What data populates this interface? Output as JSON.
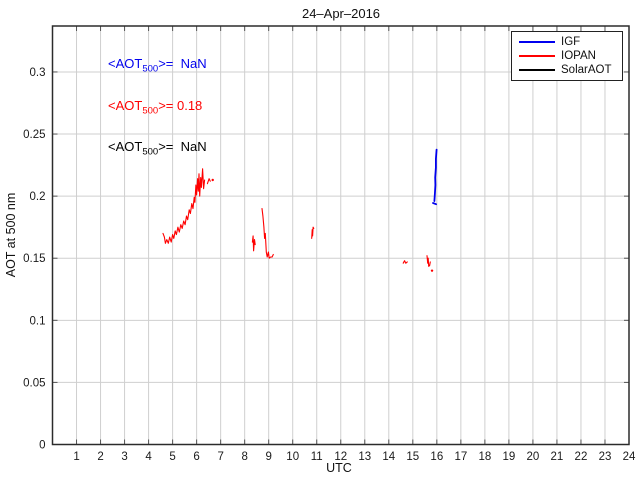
{
  "chart_data": {
    "type": "line",
    "title": "24–Apr–2016",
    "xlabel": "UTC",
    "ylabel": "AOT at 500 nm",
    "xlim": [
      0,
      24
    ],
    "ylim": [
      0,
      0.337
    ],
    "x_ticks": [
      1,
      2,
      3,
      4,
      5,
      6,
      7,
      8,
      9,
      10,
      11,
      12,
      13,
      14,
      15,
      16,
      17,
      18,
      19,
      20,
      21,
      22,
      23,
      24
    ],
    "y_ticks": [
      {
        "value": 0,
        "label": "0"
      },
      {
        "value": 0.05,
        "label": "0.05"
      },
      {
        "value": 0.1,
        "label": "0.1"
      },
      {
        "value": 0.15,
        "label": "0.15"
      },
      {
        "value": 0.2,
        "label": "0.2"
      },
      {
        "value": 0.25,
        "label": "0.25"
      },
      {
        "value": 0.3,
        "label": "0.3"
      }
    ],
    "grid": true,
    "legend_position": "top-right",
    "colors": {
      "grid": "#cfcfcf",
      "axis": "#2b2b2b",
      "tick": "#555555"
    },
    "series": [
      {
        "name": "IGF",
        "color": "#0000ee",
        "width": 1.8,
        "segments": [
          [
            [
              15.84,
              0.1945
            ],
            [
              15.97,
              0.1935
            ]
          ],
          [
            [
              15.9,
              0.196
            ],
            [
              15.92,
              0.202
            ],
            [
              15.94,
              0.209
            ],
            [
              15.93,
              0.215
            ],
            [
              15.96,
              0.223
            ],
            [
              15.96,
              0.23
            ],
            [
              15.99,
              0.2375
            ]
          ]
        ]
      },
      {
        "name": "IOPAN",
        "color": "#ff0000",
        "width": 1.1,
        "segments": [
          [
            [
              4.6,
              0.17
            ],
            [
              4.66,
              0.167
            ],
            [
              4.7,
              0.162
            ],
            [
              4.76,
              0.165
            ],
            [
              4.82,
              0.162
            ],
            [
              4.88,
              0.167
            ],
            [
              4.94,
              0.163
            ],
            [
              5.0,
              0.169
            ],
            [
              5.05,
              0.166
            ],
            [
              5.11,
              0.172
            ],
            [
              5.16,
              0.169
            ],
            [
              5.22,
              0.175
            ],
            [
              5.28,
              0.171
            ],
            [
              5.34,
              0.177
            ],
            [
              5.4,
              0.174
            ],
            [
              5.46,
              0.18
            ],
            [
              5.52,
              0.177
            ],
            [
              5.58,
              0.184
            ],
            [
              5.63,
              0.181
            ],
            [
              5.69,
              0.189
            ],
            [
              5.74,
              0.186
            ],
            [
              5.8,
              0.194
            ],
            [
              5.85,
              0.19
            ],
            [
              5.9,
              0.199
            ],
            [
              5.93,
              0.195
            ],
            [
              5.97,
              0.209
            ],
            [
              6.0,
              0.201
            ],
            [
              6.04,
              0.214
            ],
            [
              6.07,
              0.204
            ],
            [
              6.1,
              0.218
            ],
            [
              6.13,
              0.2
            ],
            [
              6.17,
              0.215
            ],
            [
              6.2,
              0.207
            ],
            [
              6.25,
              0.222
            ],
            [
              6.29,
              0.206
            ],
            [
              6.33,
              0.213
            ]
          ],
          [
            [
              6.45,
              0.21
            ],
            [
              6.52,
              0.214
            ],
            [
              6.57,
              0.212
            ]
          ],
          [
            [
              6.67,
              0.213
            ]
          ],
          [
            [
              8.32,
              0.163
            ],
            [
              8.35,
              0.168
            ],
            [
              8.37,
              0.156
            ],
            [
              8.41,
              0.165
            ],
            [
              8.44,
              0.161
            ]
          ],
          [
            [
              8.72,
              0.19
            ],
            [
              8.76,
              0.184
            ],
            [
              8.8,
              0.175
            ],
            [
              8.83,
              0.166
            ],
            [
              8.86,
              0.17
            ],
            [
              8.9,
              0.155
            ],
            [
              8.94,
              0.151
            ],
            [
              8.99,
              0.155
            ],
            [
              9.02,
              0.15
            ],
            [
              9.08,
              0.151
            ],
            [
              9.14,
              0.151
            ],
            [
              9.19,
              0.153
            ]
          ],
          [
            [
              10.79,
              0.166
            ],
            [
              10.81,
              0.173
            ],
            [
              10.83,
              0.168
            ],
            [
              10.85,
              0.175
            ],
            [
              10.88,
              0.174
            ]
          ],
          [
            [
              14.6,
              0.146
            ],
            [
              14.66,
              0.148
            ],
            [
              14.71,
              0.146
            ],
            [
              14.77,
              0.147
            ]
          ],
          [
            [
              15.59,
              0.152
            ],
            [
              15.62,
              0.146
            ],
            [
              15.64,
              0.15
            ],
            [
              15.66,
              0.1435
            ],
            [
              15.7,
              0.144
            ],
            [
              15.73,
              0.147
            ]
          ],
          [
            [
              15.8,
              0.14
            ]
          ]
        ]
      },
      {
        "name": "SolarAOT",
        "color": "#000000",
        "width": 1,
        "segments": []
      }
    ]
  },
  "annotations": [
    {
      "prefix": "<AOT",
      "sub": "500",
      "suffix": ">=  NaN",
      "color": "#0000ee"
    },
    {
      "prefix": "<AOT",
      "sub": "500",
      "suffix": ">= 0.18",
      "color": "#ff0000"
    },
    {
      "prefix": "<AOT",
      "sub": "500",
      "suffix": ">=  NaN",
      "color": "#000000"
    }
  ]
}
